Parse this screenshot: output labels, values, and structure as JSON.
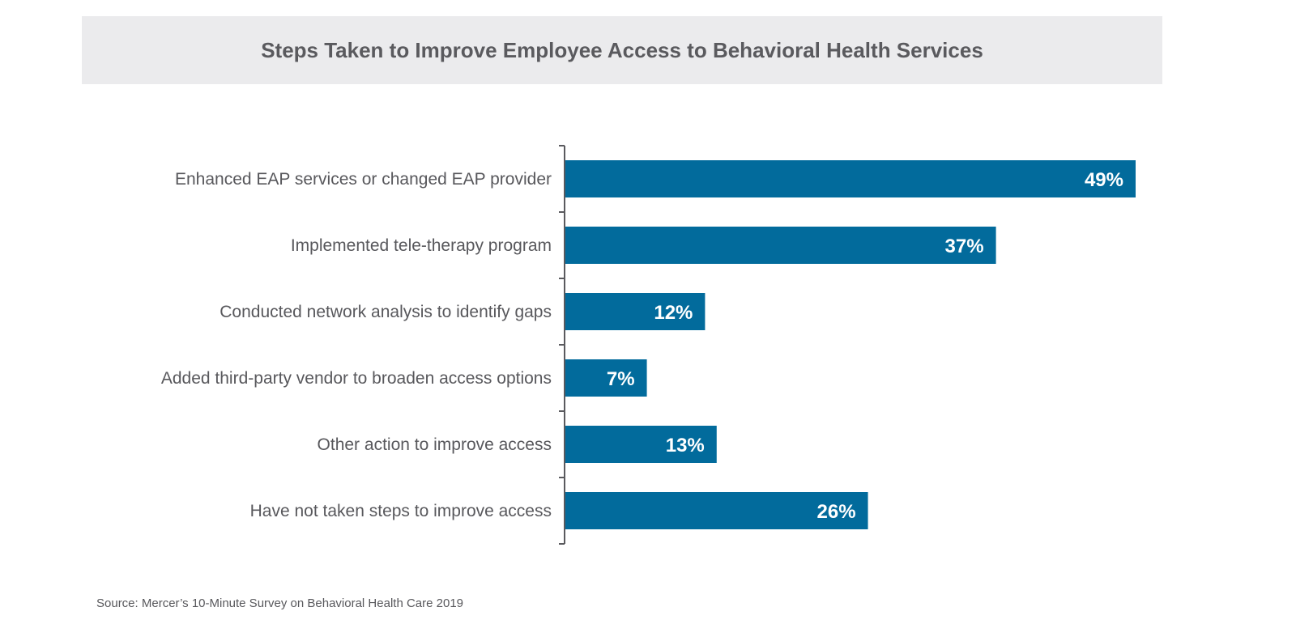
{
  "chart_data": {
    "type": "bar",
    "orientation": "horizontal",
    "title": "Steps Taken to Improve Employee Access to Behavioral Health Services",
    "categories": [
      "Enhanced EAP services or changed EAP provider",
      "Implemented tele-therapy program",
      "Conducted network analysis to identify gaps",
      "Added third-party vendor to broaden access options",
      "Other action to improve access",
      "Have not taken steps to improve access"
    ],
    "values": [
      49,
      37,
      12,
      7,
      13,
      26
    ],
    "value_labels": [
      "49%",
      "37%",
      "12%",
      "7%",
      "13%",
      "26%"
    ],
    "unit": "%",
    "xlim": [
      0,
      49
    ],
    "xlabel": "",
    "ylabel": "",
    "grid": false,
    "bar_color": "#026b9c",
    "source": "Source: Mercer’s 10-Minute Survey on Behavioral Health Care 2019"
  }
}
